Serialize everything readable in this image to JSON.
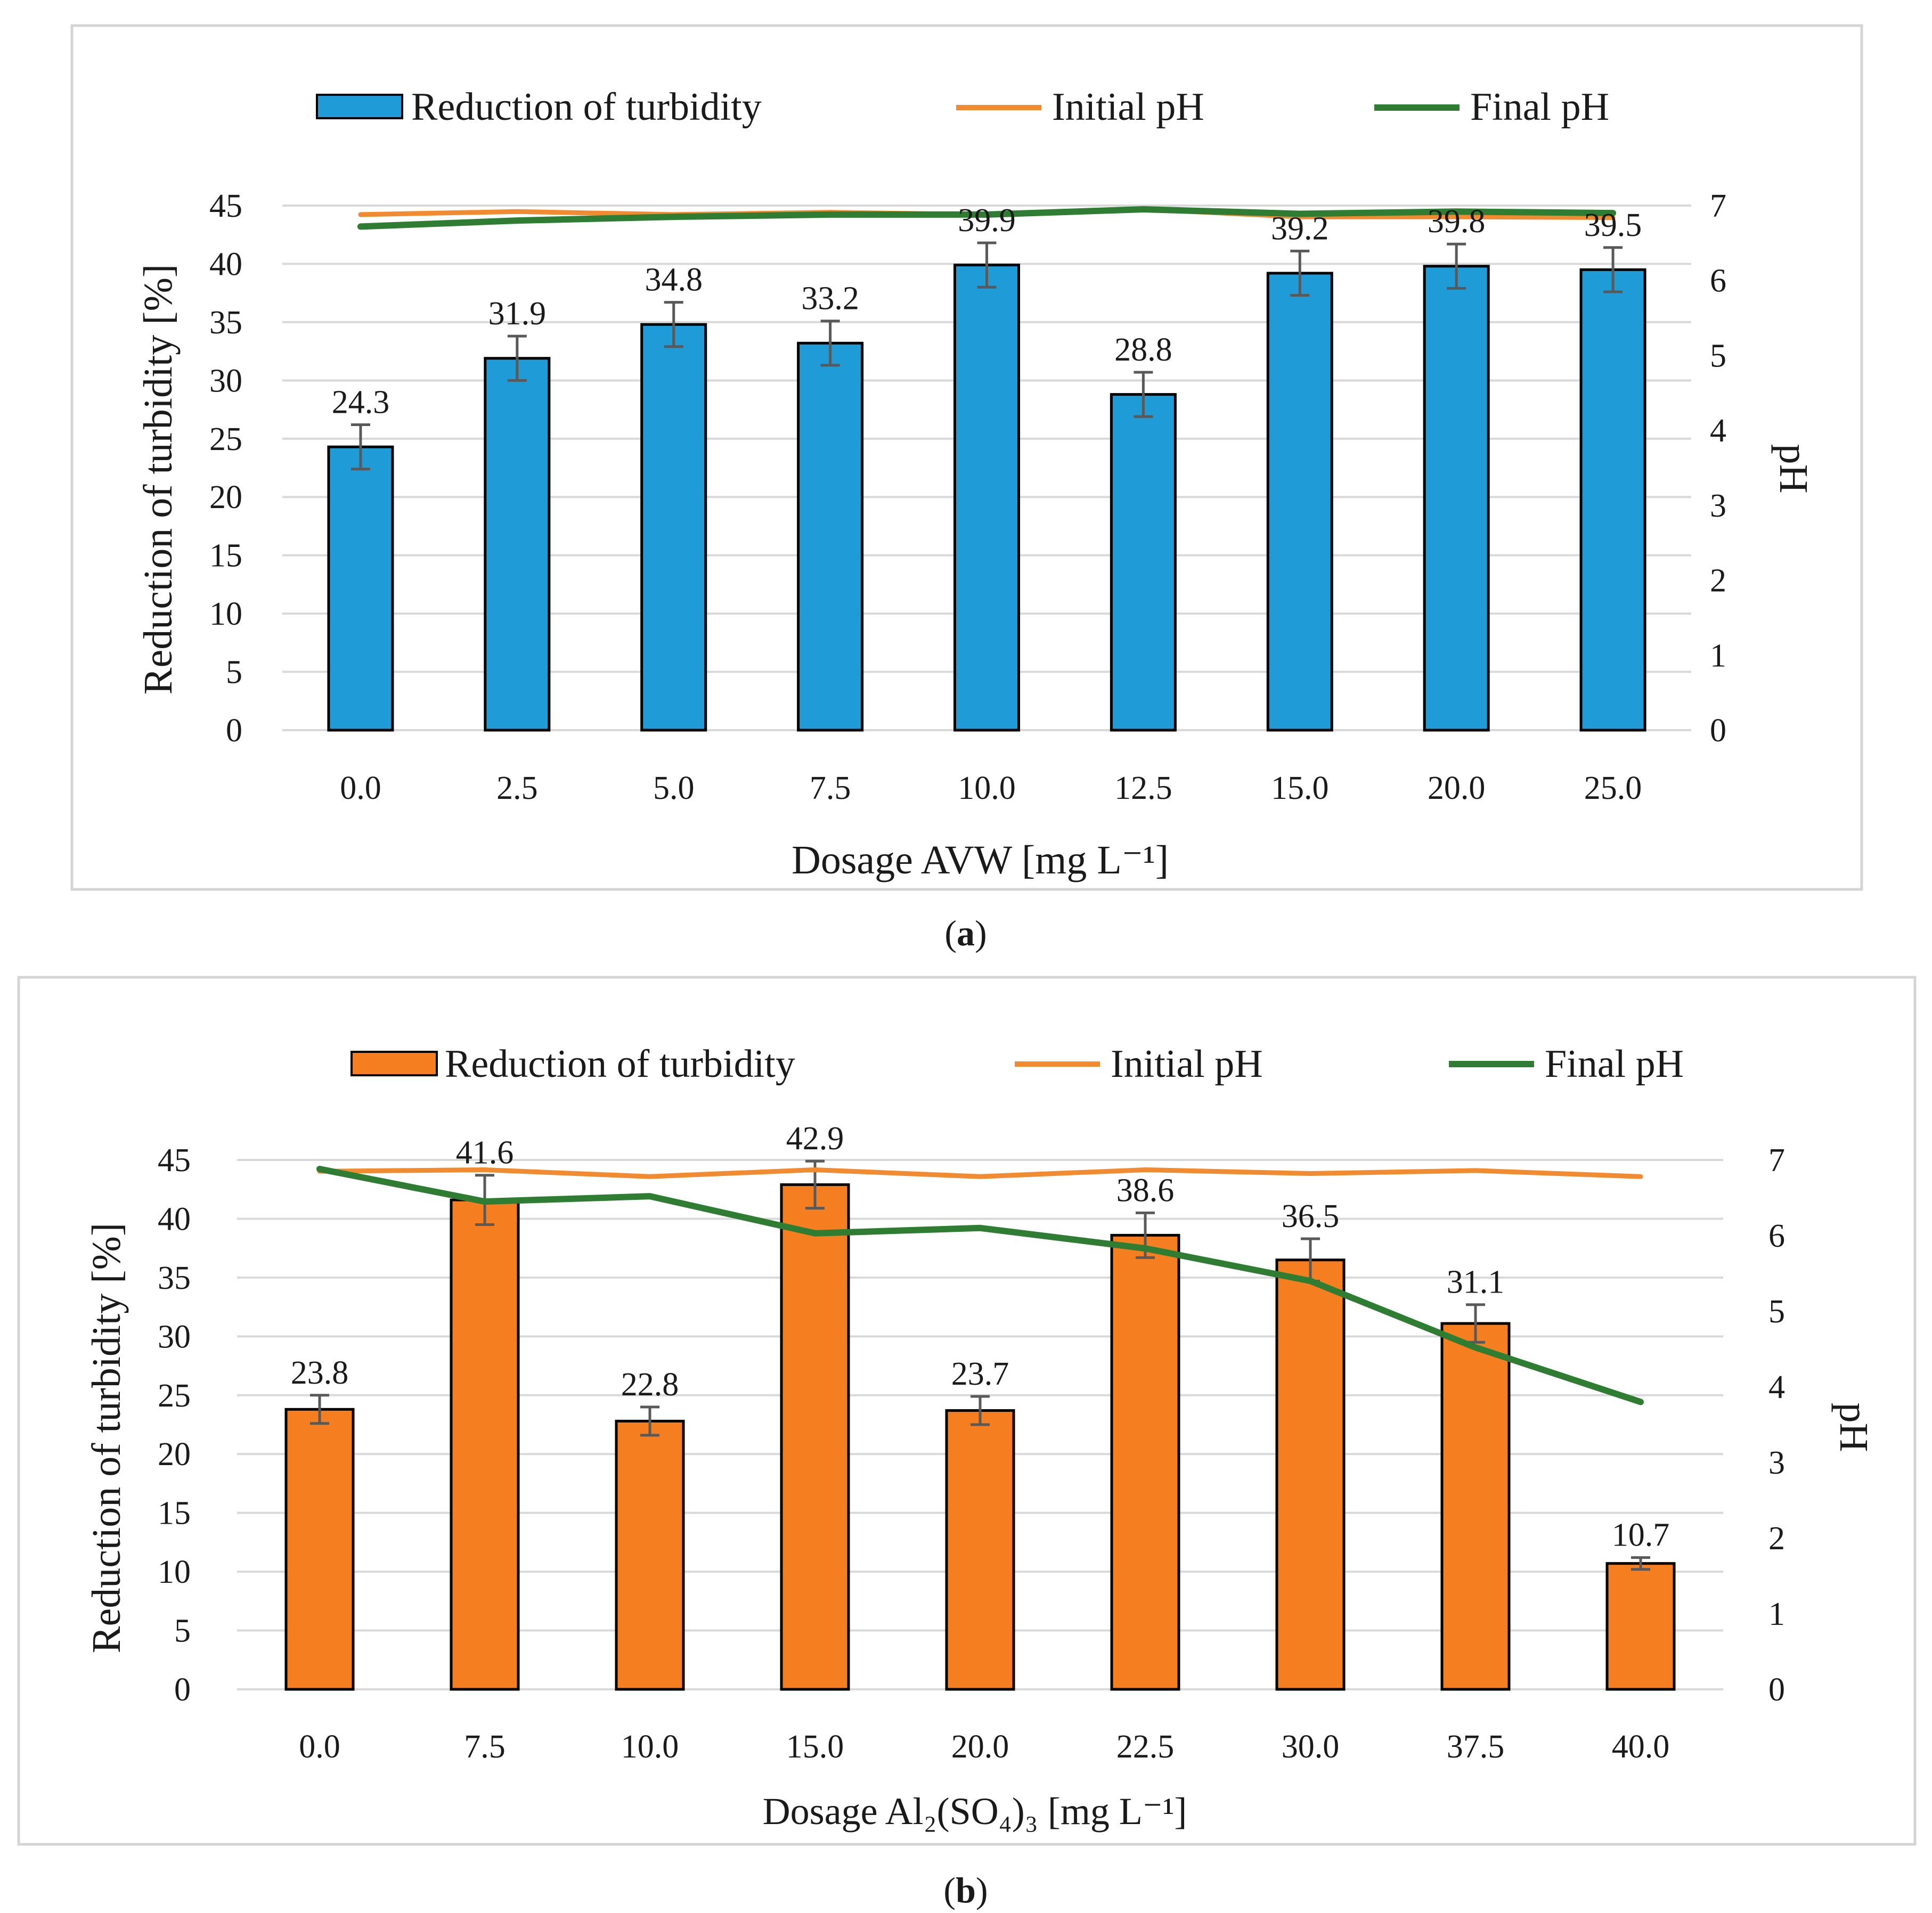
{
  "chart_data": [
    {
      "type": "bar+line",
      "panel_label": "a",
      "categories": [
        "0.0",
        "2.5",
        "5.0",
        "7.5",
        "10.0",
        "12.5",
        "15.0",
        "20.0",
        "25.0"
      ],
      "series": [
        {
          "name": "Reduction of turbidity",
          "kind": "bar",
          "axis": "left",
          "color": "#1f9bd7",
          "values": [
            24.3,
            31.9,
            34.8,
            33.2,
            39.9,
            28.8,
            39.2,
            39.8,
            39.5
          ],
          "labels": [
            "24.3",
            "31.9",
            "34.8",
            "33.2",
            "39.9",
            "28.8",
            "39.2",
            "39.8",
            "39.5"
          ],
          "error": [
            1.9,
            1.9,
            1.9,
            1.9,
            1.9,
            1.9,
            1.9,
            1.9,
            1.9
          ]
        },
        {
          "name": "Initial pH",
          "kind": "line",
          "axis": "right",
          "color": "#f28b30",
          "values": [
            6.88,
            6.92,
            6.88,
            6.91,
            6.88,
            6.95,
            6.85,
            6.85,
            6.84
          ]
        },
        {
          "name": "Final pH",
          "kind": "line",
          "axis": "right",
          "color": "#2e7d32",
          "values": [
            6.72,
            6.8,
            6.85,
            6.88,
            6.88,
            6.95,
            6.89,
            6.92,
            6.9
          ]
        }
      ],
      "xlabel": "Dosage AVW [mg L⁻¹]",
      "ylabel": "Reduction of turbidity [%]",
      "y2label": "pH",
      "ylim": [
        0,
        45
      ],
      "yticks": [
        "0",
        "5",
        "10",
        "15",
        "20",
        "25",
        "30",
        "35",
        "40",
        "45"
      ],
      "y2lim": [
        0,
        7
      ],
      "y2ticks": [
        "0",
        "1",
        "2",
        "3",
        "4",
        "5",
        "6",
        "7"
      ],
      "legend": [
        "Reduction of turbidity",
        "Initial pH",
        "Final pH"
      ],
      "legend_position": "top",
      "grid": true
    },
    {
      "type": "bar+line",
      "panel_label": "b",
      "categories": [
        "0.0",
        "7.5",
        "10.0",
        "15.0",
        "20.0",
        "22.5",
        "30.0",
        "37.5",
        "40.0"
      ],
      "series": [
        {
          "name": "Reduction of turbidity",
          "kind": "bar",
          "axis": "left",
          "color": "#f47e20",
          "values": [
            23.8,
            41.6,
            22.8,
            42.9,
            23.7,
            38.6,
            36.5,
            31.1,
            10.7
          ],
          "labels": [
            "23.8",
            "41.6",
            "22.8",
            "42.9",
            "23.7",
            "38.6",
            "36.5",
            "31.1",
            "10.7"
          ],
          "error": [
            1.2,
            2.1,
            1.2,
            2.0,
            1.2,
            1.9,
            1.8,
            1.6,
            0.5
          ]
        },
        {
          "name": "Initial pH",
          "kind": "line",
          "axis": "right",
          "color": "#f28b30",
          "values": [
            6.85,
            6.87,
            6.78,
            6.87,
            6.78,
            6.87,
            6.82,
            6.86,
            6.78
          ]
        },
        {
          "name": "Final pH",
          "kind": "line",
          "axis": "right",
          "color": "#2e7d32",
          "values": [
            6.88,
            6.45,
            6.52,
            6.03,
            6.1,
            5.83,
            5.4,
            4.52,
            3.8
          ]
        }
      ],
      "xlabel": "Dosage Al₂(SO₄)₃  [mg L⁻¹]",
      "ylabel": "Reduction of turbidity [%]",
      "y2label": "pH",
      "ylim": [
        0,
        45
      ],
      "yticks": [
        "0",
        "5",
        "10",
        "15",
        "20",
        "25",
        "30",
        "35",
        "40",
        "45"
      ],
      "y2lim": [
        0,
        7
      ],
      "y2ticks": [
        "0",
        "1",
        "2",
        "3",
        "4",
        "5",
        "6",
        "7"
      ],
      "legend": [
        "Reduction of turbidity",
        "Initial pH",
        "Final pH"
      ],
      "legend_position": "top",
      "grid": true
    }
  ]
}
